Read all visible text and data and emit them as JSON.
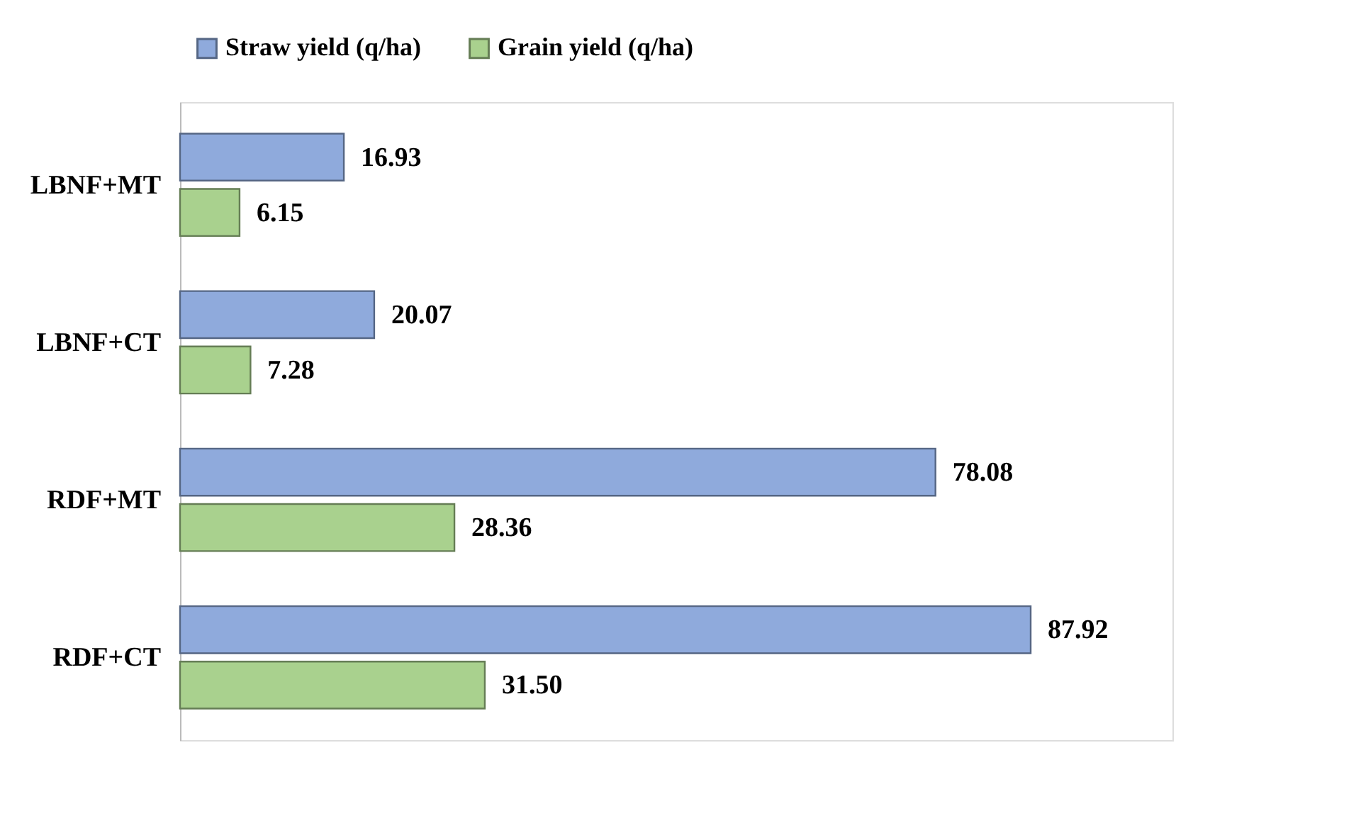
{
  "chart_data": {
    "type": "bar",
    "orientation": "horizontal",
    "categories": [
      "LBNF+MT",
      "LBNF+CT",
      "RDF+MT",
      "RDF+CT"
    ],
    "series": [
      {
        "name": "Straw yield (q/ha)",
        "color": "#8faadc",
        "values": [
          16.93,
          20.07,
          78.08,
          87.92
        ],
        "value_labels": [
          "16.93",
          "20.07",
          "78.08",
          "87.92"
        ]
      },
      {
        "name": "Grain yield (q/ha)",
        "color": "#a9d18e",
        "values": [
          6.15,
          7.28,
          28.36,
          31.5
        ],
        "value_labels": [
          "6.15",
          "7.28",
          "28.36",
          "31.50"
        ]
      }
    ],
    "legend": "top",
    "grid": false
  }
}
